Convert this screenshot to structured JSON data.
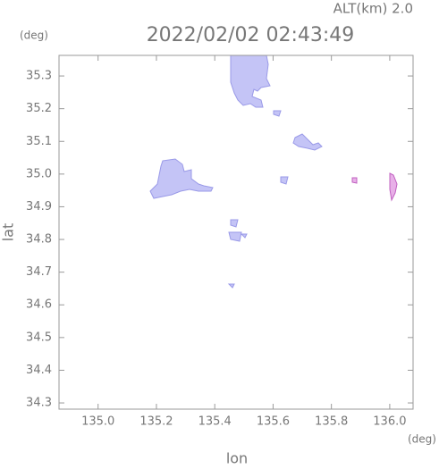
{
  "chart_data": {
    "type": "map",
    "subtitle": "ALT(km) 2.0",
    "title": "2022/02/02 02:43:49",
    "y_unit": "(deg)",
    "x_unit": "(deg)",
    "ylabel": "lat",
    "xlabel": "lon",
    "xlim": [
      134.866,
      136.08
    ],
    "ylim": [
      34.281,
      35.363
    ],
    "xticks": [
      {
        "value": 135,
        "label": "135.0"
      },
      135.2,
      135.4,
      135.6,
      135.8,
      {
        "value": 136,
        "label": "136.0"
      }
    ],
    "yticks": [
      34.3,
      34.4,
      34.5,
      34.6,
      34.7,
      34.8,
      34.9,
      {
        "value": 35,
        "label": "35.0"
      },
      35.1,
      35.2,
      35.3
    ]
  }
}
